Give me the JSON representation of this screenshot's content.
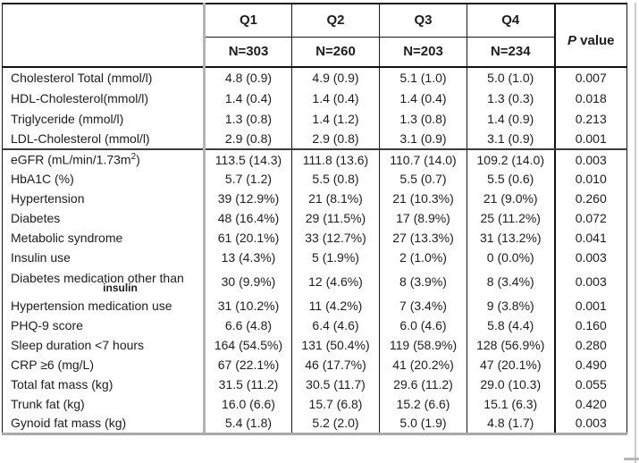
{
  "table": {
    "quarter_columns": [
      {
        "label": "Q1",
        "n": "N=303"
      },
      {
        "label": "Q2",
        "n": "N=260"
      },
      {
        "label": "Q3",
        "n": "N=203"
      },
      {
        "label": "Q4",
        "n": "N=234"
      }
    ],
    "p_column": {
      "symbol": "P",
      "word": "value"
    },
    "sections": [
      {
        "rows": [
          {
            "label": "Cholesterol Total (mmol/l)",
            "values": [
              "4.8 (0.9)",
              "4.9 (0.9)",
              "5.1 (1.0)",
              "5.0 (1.0)"
            ],
            "p": "0.007"
          },
          {
            "label": "HDL-Cholesterol(mmol/l)",
            "values": [
              "1.4 (0.4)",
              "1.4 (0.4)",
              "1.4 (0.4)",
              "1.3 (0.3)"
            ],
            "p": "0.018"
          },
          {
            "label": "Triglyceride (mmol/l)",
            "values": [
              "1.3 (0.8)",
              "1.4 (1.2)",
              "1.3 (0.8)",
              "1.4 (0.9)"
            ],
            "p": "0.213"
          },
          {
            "label": "LDL-Cholesterol (mmol/l)",
            "values": [
              "2.9 (0.8)",
              "2.9 (0.8)",
              "3.1 (0.9)",
              "3.1 (0.9)"
            ],
            "p": "0.001"
          }
        ]
      },
      {
        "rows": [
          {
            "label": "eGFR (mL/min/1.73m",
            "label_sup": "2",
            "label_tail": ")",
            "values": [
              "113.5 (14.3)",
              "111.8 (13.6)",
              "110.7 (14.0)",
              "109.2 (14.0)"
            ],
            "p": "0.003"
          },
          {
            "label": "HbA1C (%)",
            "values": [
              "5.7 (1.2)",
              "5.5 (0.8)",
              "5.5 (0.7)",
              "5.5 (0.6)"
            ],
            "p": "0.010"
          },
          {
            "label": "Hypertension",
            "values": [
              "39 (12.9%)",
              "21 (8.1%)",
              "21 (10.3%)",
              "21 (9.0%)"
            ],
            "p": "0.260"
          },
          {
            "label": "Diabetes",
            "values": [
              "48 (16.4%)",
              "29 (11.5%)",
              "17 (8.9%)",
              "25 (11.2%)"
            ],
            "p": "0.072"
          },
          {
            "label": "Metabolic syndrome",
            "values": [
              "61 (20.1%)",
              "33 (12.7%)",
              "27 (13.3%)",
              "31 (13.2%)"
            ],
            "p": "0.041"
          },
          {
            "label": "Insulin use",
            "values": [
              "13 (4.3%)",
              "5 (1.9%)",
              "2 (1.0%)",
              "0 (0.0%)"
            ],
            "p": "0.003"
          },
          {
            "label": "Diabetes medication other than",
            "label_line2": "insulin",
            "values": [
              "30 (9.9%)",
              "12 (4.6%)",
              "8 (3.9%)",
              "8 (3.4%)"
            ],
            "p": "0.003"
          },
          {
            "label": "Hypertension medication use",
            "values": [
              "31 (10.2%)",
              "11 (4.2%)",
              "7 (3.4%)",
              "9 (3.8%)"
            ],
            "p": "0.001"
          },
          {
            "label": "PHQ-9 score",
            "values": [
              "6.6 (4.8)",
              "6.4 (4.6)",
              "6.0 (4.6)",
              "5.8 (4.4)"
            ],
            "p": "0.160"
          },
          {
            "label": "Sleep duration <7 hours",
            "values": [
              "164 (54.5%)",
              "131 (50.4%)",
              "119 (58.9%)",
              "128 (56.9%)"
            ],
            "p": "0.280"
          },
          {
            "label": "CRP ≥6 (mg/L)",
            "values": [
              "67 (22.1%)",
              "46 (17.7%)",
              "41 (20.2%)",
              "47 (20.1%)"
            ],
            "p": "0.490"
          },
          {
            "label": "Total fat mass (kg)",
            "values": [
              "31.5 (11.2)",
              "30.5 (11.7)",
              "29.6 (11.2)",
              "29.0 (10.3)"
            ],
            "p": "0.055"
          },
          {
            "label": "Trunk fat (kg)",
            "values": [
              "16.0 (6.6)",
              "15.7 (6.8)",
              "15.2 (6.6)",
              "15.1 (6.3)"
            ],
            "p": "0.420"
          },
          {
            "label": "Gynoid fat mass (kg)",
            "values": [
              "5.4 (1.8)",
              "5.2 (2.0)",
              "5.0 (1.9)",
              "4.8 (1.7)"
            ],
            "p": "0.003"
          }
        ]
      }
    ],
    "colors": {
      "border_dark": "#1a1a1a",
      "border_gray": "#b3b3b3",
      "bottom_border": "#a9a9a9",
      "text": "#1d1d1d"
    }
  }
}
